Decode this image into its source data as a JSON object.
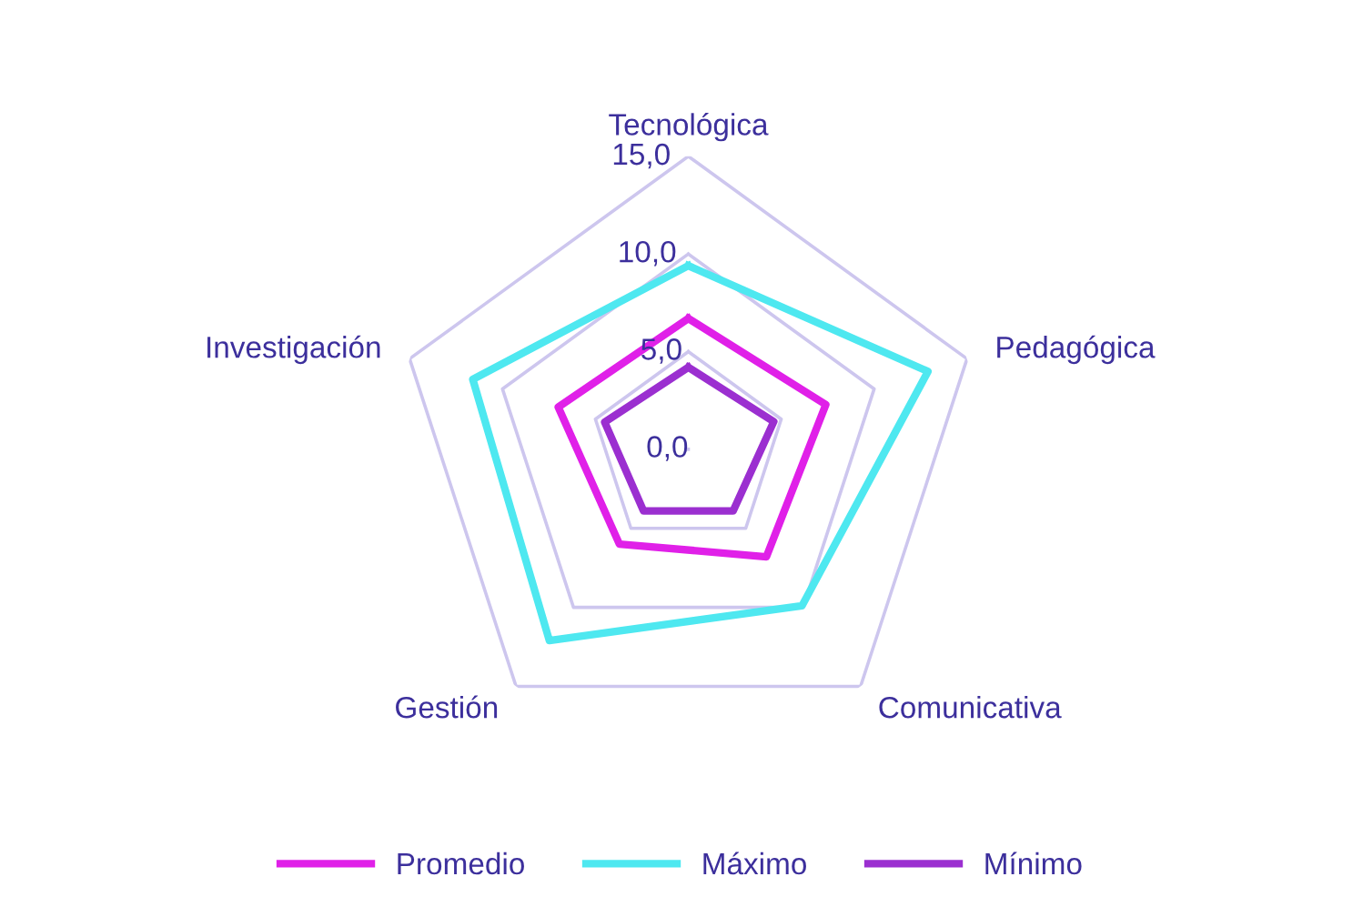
{
  "chart_data": {
    "type": "radar",
    "categories": [
      "Tecnológica",
      "Pedagógica",
      "Comunicativa",
      "Gestión",
      "Investigación"
    ],
    "ylim": [
      0,
      15
    ],
    "yticks": [
      {
        "value": 0,
        "label": "0,0"
      },
      {
        "value": 5,
        "label": "5,0"
      },
      {
        "value": 10,
        "label": "10,0"
      },
      {
        "value": 15,
        "label": "15,0"
      }
    ],
    "grid": true,
    "legend": "bottom",
    "marker": "none",
    "line_style": "solid",
    "series": [
      {
        "name": "Promedio",
        "color": "#e020e8",
        "values": [
          6.7,
          7.4,
          6.8,
          6.0,
          7.0
        ]
      },
      {
        "name": "Máximo",
        "color": "#4ee8f0",
        "values": [
          9.4,
          12.9,
          9.9,
          12.1,
          11.6
        ]
      },
      {
        "name": "Mínimo",
        "color": "#9b2fd0",
        "values": [
          4.2,
          4.6,
          3.9,
          3.9,
          4.5
        ]
      }
    ]
  }
}
